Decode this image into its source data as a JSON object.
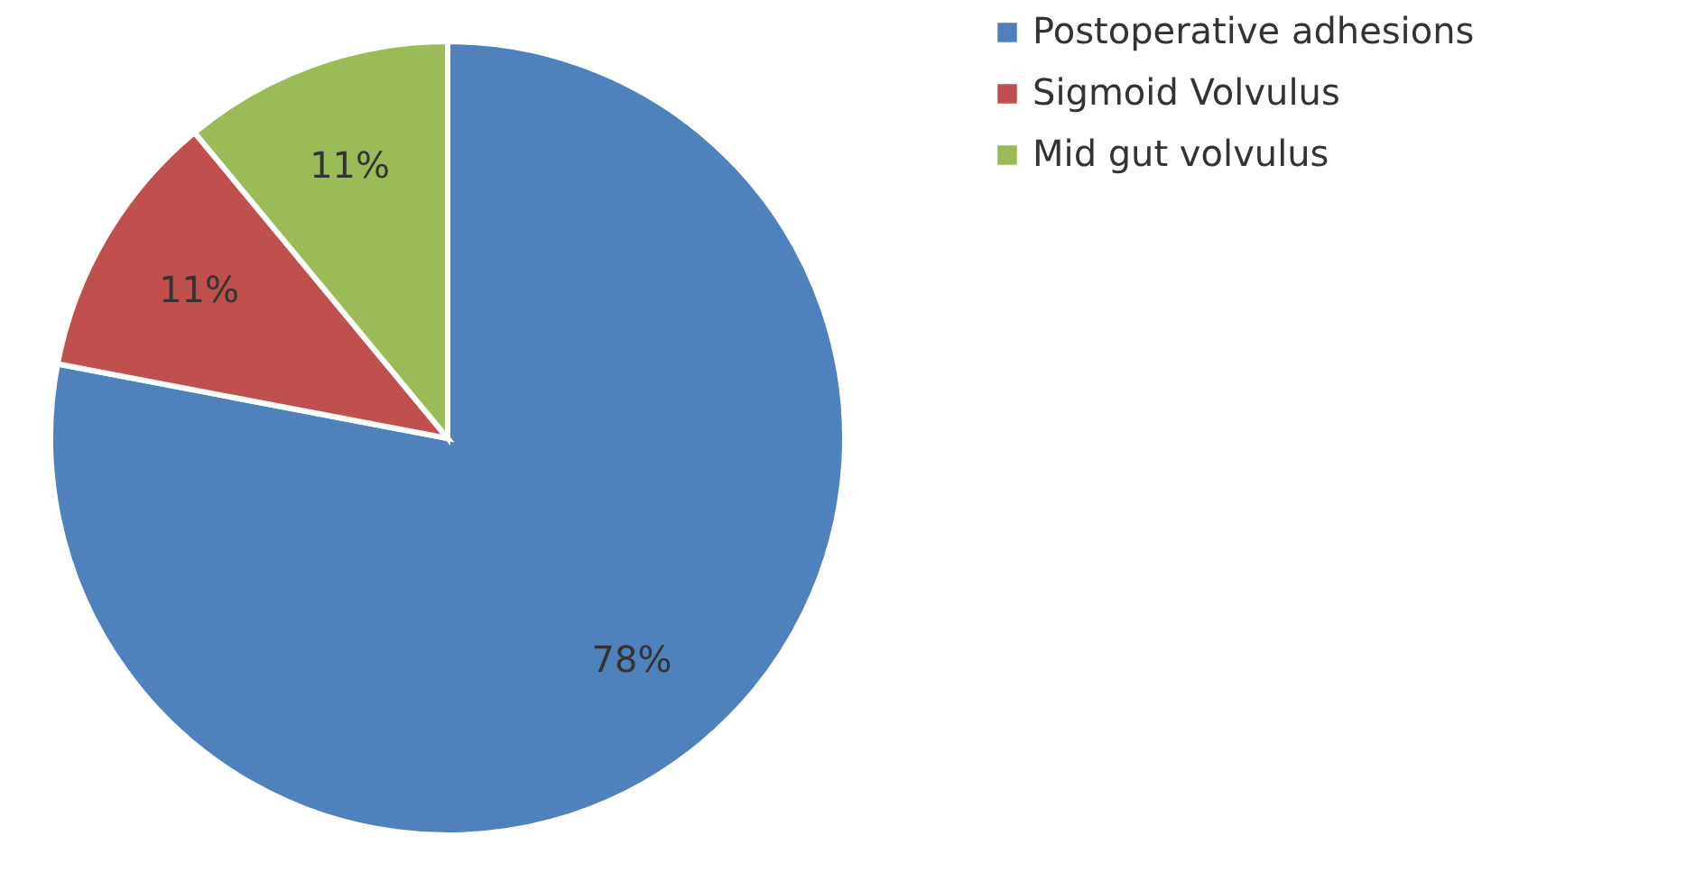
{
  "chart_data": {
    "type": "pie",
    "categories": [
      "Postoperative adhesions",
      "Sigmoid Volvulus",
      "Mid gut volvulus"
    ],
    "values": [
      78,
      11,
      11
    ],
    "colors": [
      "#4f81bd",
      "#c0504d",
      "#9bbb59"
    ],
    "value_labels": [
      "78%",
      "11%",
      "11%"
    ],
    "legend": "right"
  }
}
